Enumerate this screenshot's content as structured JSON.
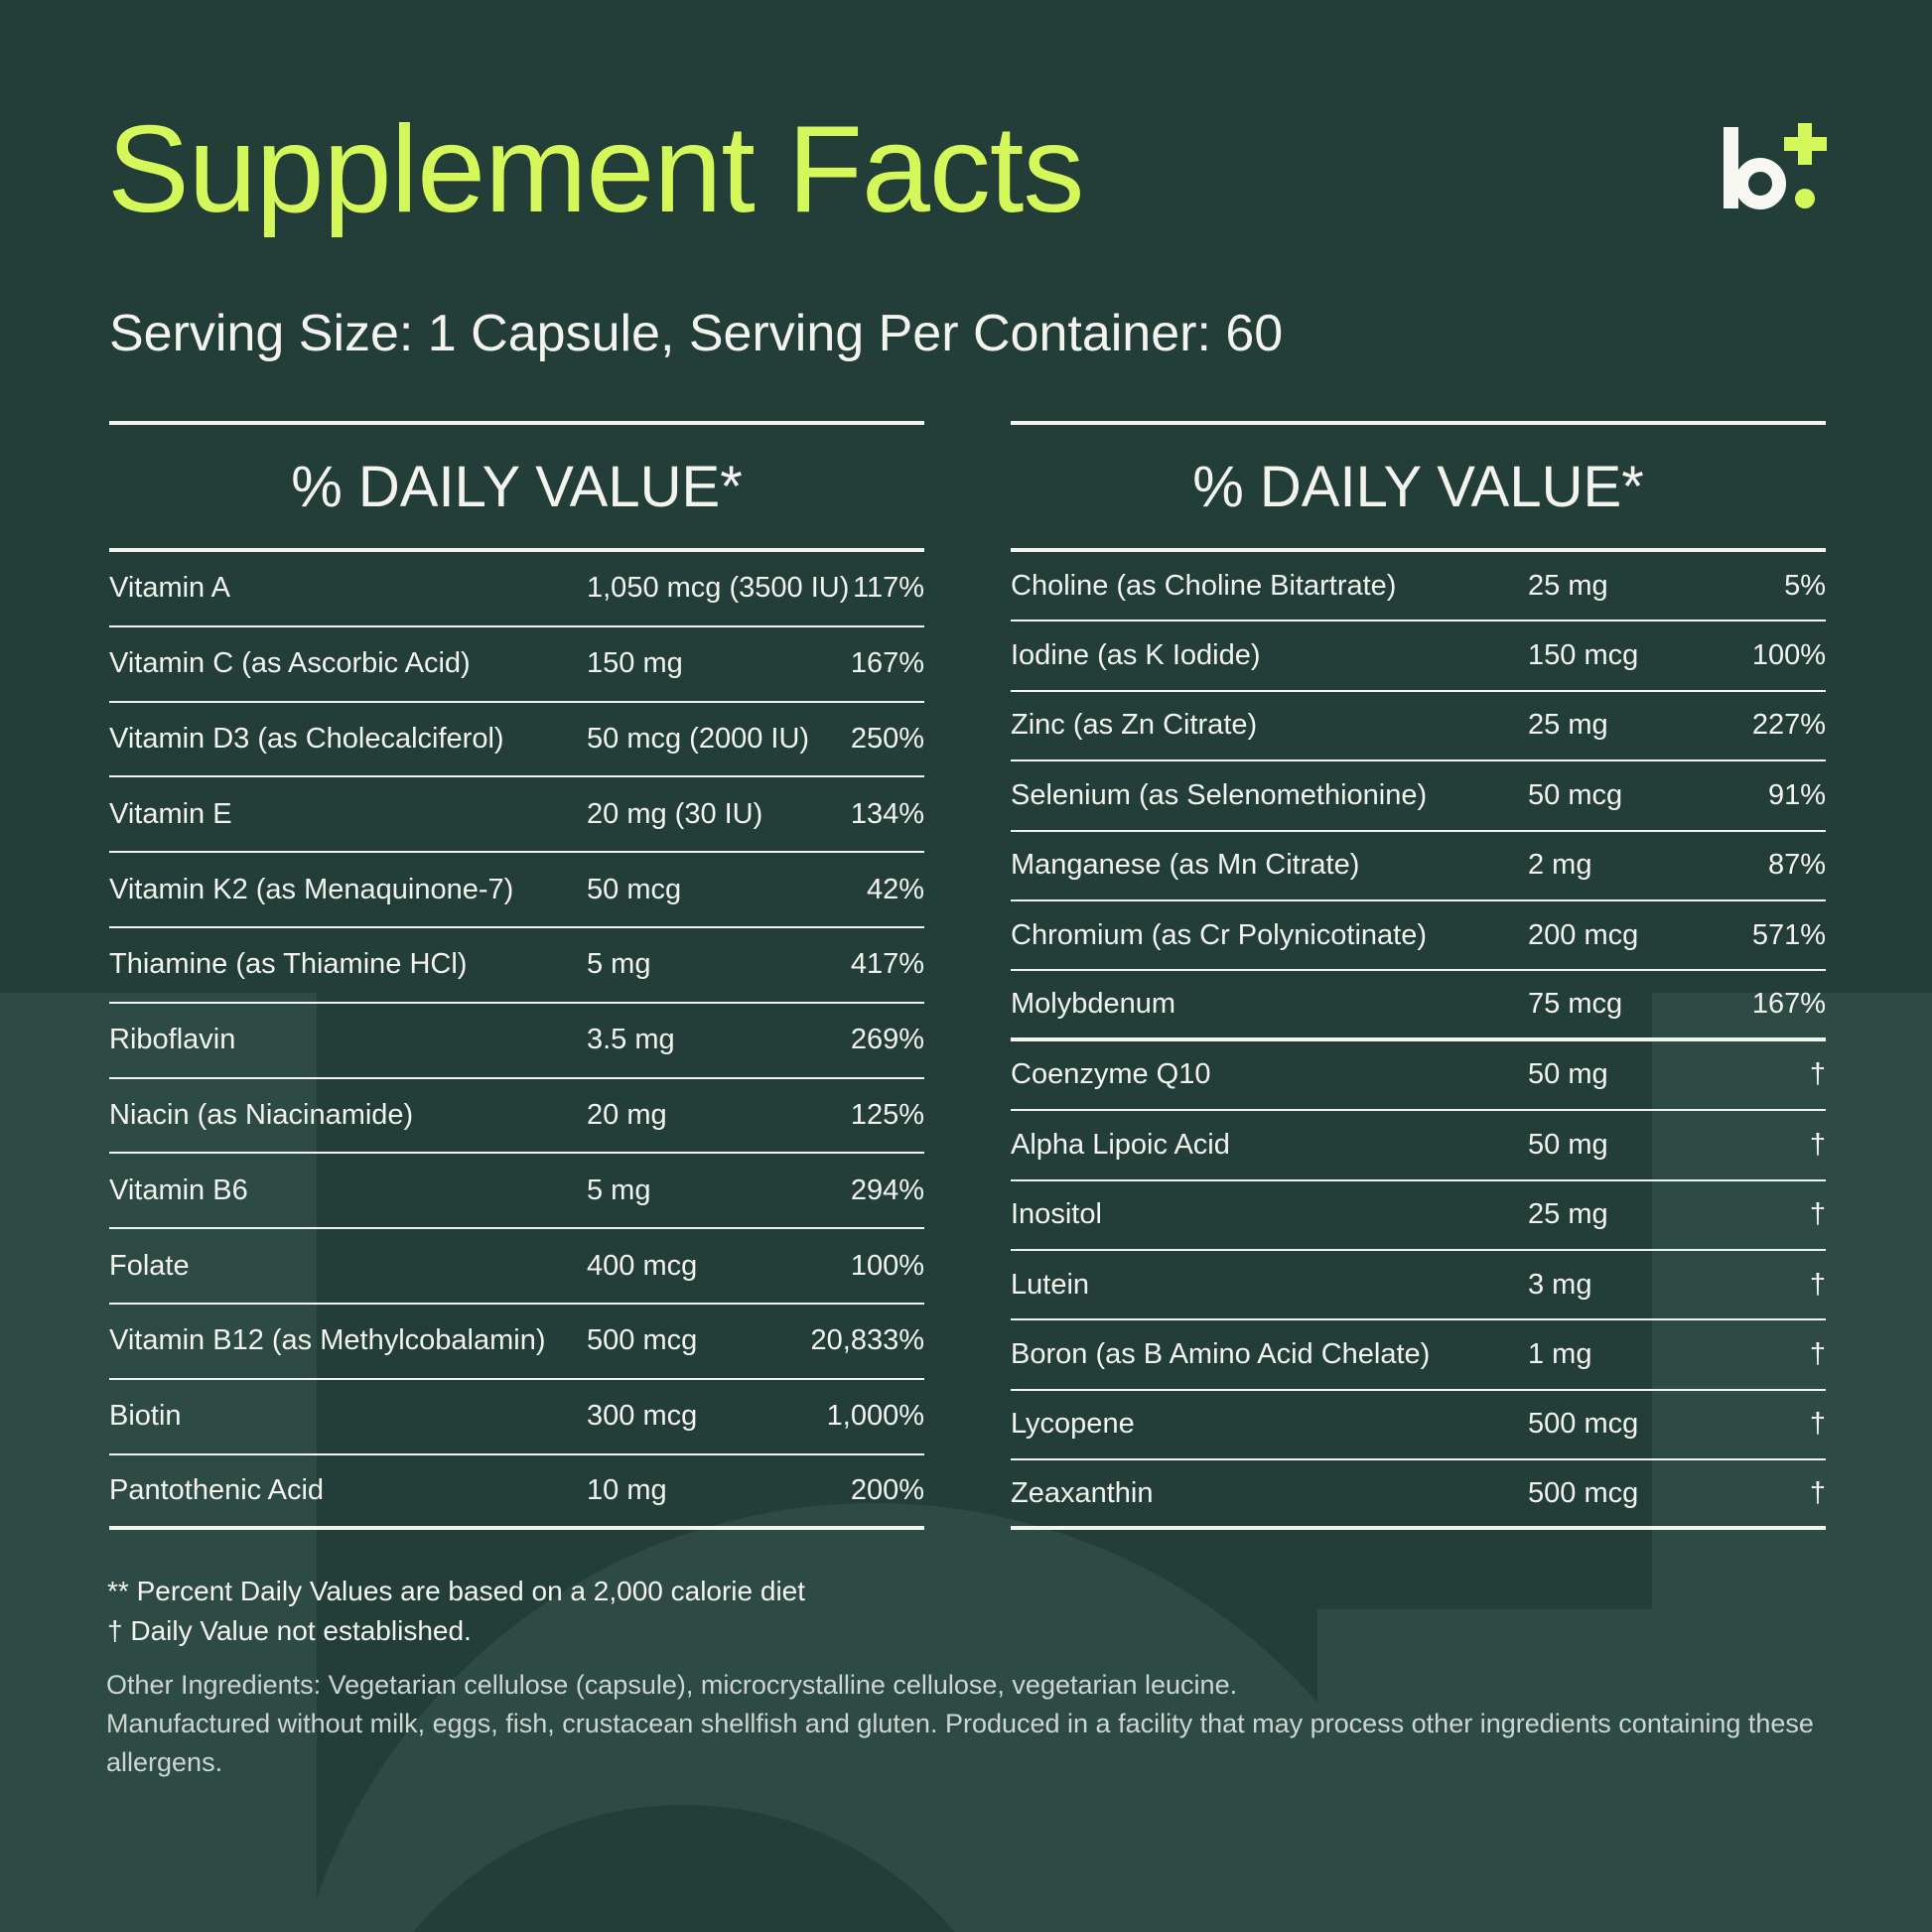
{
  "title": "Supplement Facts",
  "serving": "Serving Size: 1 Capsule, Serving Per Container: 60",
  "colors": {
    "accent": "#d4f75a",
    "background": "#233d39",
    "text": "#f4f4ee"
  },
  "left_table": {
    "header": "% DAILY VALUE*",
    "rows": [
      {
        "name": "Vitamin A",
        "amount": "1,050 mcg (3500 IU)",
        "dv": "117%"
      },
      {
        "name": "Vitamin C (as Ascorbic Acid)",
        "amount": "150 mg",
        "dv": "167%"
      },
      {
        "name": "Vitamin D3 (as Cholecalciferol)",
        "amount": "50 mcg (2000 IU)",
        "dv": "250%"
      },
      {
        "name": "Vitamin E",
        "amount": "20 mg (30 IU)",
        "dv": "134%"
      },
      {
        "name": "Vitamin K2 (as Menaquinone-7)",
        "amount": "50 mcg",
        "dv": "42%"
      },
      {
        "name": "Thiamine (as Thiamine HCl)",
        "amount": "5 mg",
        "dv": "417%"
      },
      {
        "name": "Riboflavin",
        "amount": "3.5 mg",
        "dv": "269%"
      },
      {
        "name": "Niacin (as Niacinamide)",
        "amount": "20 mg",
        "dv": "125%"
      },
      {
        "name": "Vitamin B6",
        "amount": "5 mg",
        "dv": "294%"
      },
      {
        "name": "Folate",
        "amount": "400 mcg",
        "dv": "100%"
      },
      {
        "name": "Vitamin B12 (as Methylcobalamin)",
        "amount": "500 mcg",
        "dv": "20,833%"
      },
      {
        "name": "Biotin",
        "amount": "300 mcg",
        "dv": "1,000%"
      },
      {
        "name": "Pantothenic Acid",
        "amount": "10 mg",
        "dv": "200%"
      }
    ]
  },
  "right_table": {
    "header": "% DAILY VALUE*",
    "rows": [
      {
        "name": "Choline (as Choline Bitartrate)",
        "amount": "25 mg",
        "dv": "5%"
      },
      {
        "name": "Iodine (as K Iodide)",
        "amount": "150 mcg",
        "dv": "100%"
      },
      {
        "name": "Zinc (as Zn Citrate)",
        "amount": "25 mg",
        "dv": "227%"
      },
      {
        "name": "Selenium (as Selenomethionine)",
        "amount": "50 mcg",
        "dv": "91%"
      },
      {
        "name": "Manganese (as Mn Citrate)",
        "amount": "2 mg",
        "dv": "87%"
      },
      {
        "name": "Chromium (as Cr Polynicotinate)",
        "amount": "200 mcg",
        "dv": "571%"
      },
      {
        "name": "Molybdenum",
        "amount": "75 mcg",
        "dv": "167%"
      },
      {
        "name": "Coenzyme Q10",
        "amount": "50 mg",
        "dv": "†"
      },
      {
        "name": "Alpha Lipoic Acid",
        "amount": "50 mg",
        "dv": "†"
      },
      {
        "name": "Inositol",
        "amount": "25 mg",
        "dv": "†"
      },
      {
        "name": "Lutein",
        "amount": "3 mg",
        "dv": "†"
      },
      {
        "name": "Boron (as B Amino Acid Chelate)",
        "amount": "1 mg",
        "dv": "†"
      },
      {
        "name": "Lycopene",
        "amount": "500 mcg",
        "dv": "†"
      },
      {
        "name": "Zeaxanthin",
        "amount": "500 mcg",
        "dv": "†"
      }
    ]
  },
  "footnotes": [
    "** Percent Daily Values are based on a 2,000 calorie diet",
    "† Daily Value not established."
  ],
  "other_ingredients": [
    "Other Ingredients: Vegetarian cellulose (capsule), microcrystalline cellulose, vegetarian leucine.",
    "Manufactured without milk, eggs, fish, crustacean shellfish and gluten. Produced in a facility that may process other ingredients containing these allergens."
  ],
  "logo": {
    "icon": "b-plus-logo",
    "text": "b+"
  }
}
